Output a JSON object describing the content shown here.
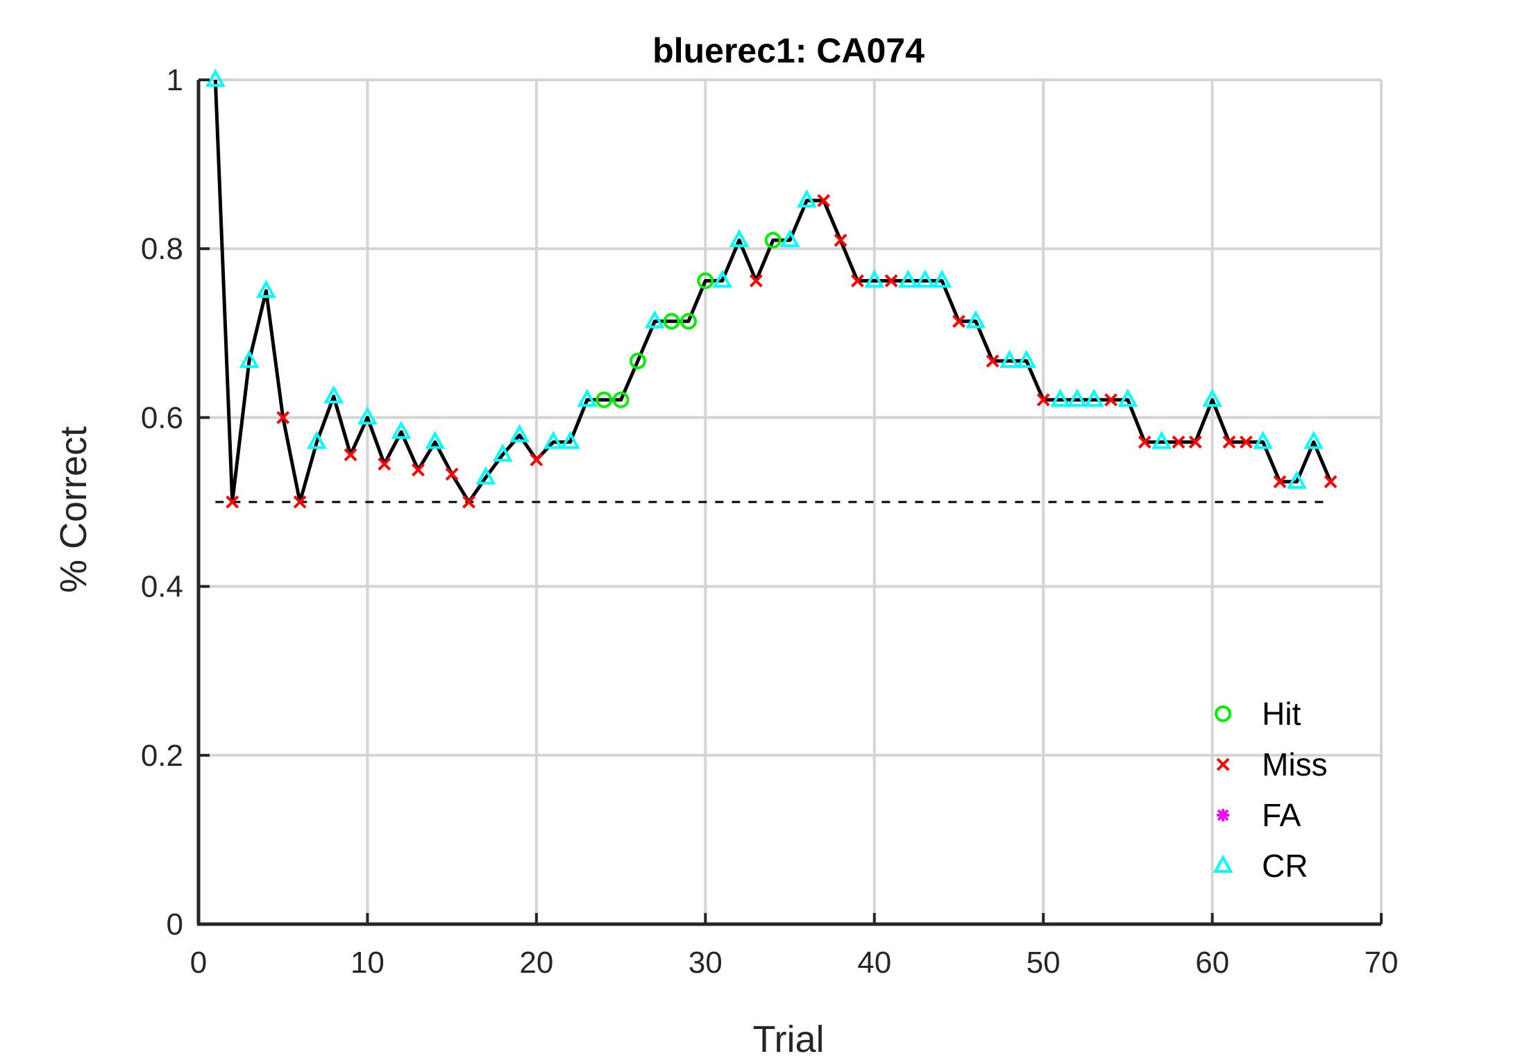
{
  "chart_data": {
    "type": "line",
    "title": "bluerec1: CA074",
    "xlabel": "Trial",
    "ylabel": "% Correct",
    "xlim": [
      0,
      70
    ],
    "ylim": [
      0,
      1
    ],
    "xticks": [
      0,
      10,
      20,
      30,
      40,
      50,
      60,
      70
    ],
    "yticks": [
      0,
      0.2,
      0.4,
      0.6,
      0.8,
      1
    ],
    "ytick_labels": [
      "0",
      "0.2",
      "0.4",
      "0.6",
      "0.8",
      "1"
    ],
    "grid": true,
    "chance_line": {
      "y": 0.5,
      "x_range": [
        1,
        67
      ],
      "style": "dashed"
    },
    "legend_position": "bottom-right",
    "series": [
      {
        "name": "% Correct",
        "line_color": "#000000",
        "x": [
          1,
          2,
          3,
          4,
          5,
          6,
          7,
          8,
          9,
          10,
          11,
          12,
          13,
          14,
          15,
          16,
          17,
          18,
          19,
          20,
          21,
          22,
          23,
          24,
          25,
          26,
          27,
          28,
          29,
          30,
          31,
          32,
          33,
          34,
          35,
          36,
          37,
          38,
          39,
          40,
          41,
          42,
          43,
          44,
          45,
          46,
          47,
          48,
          49,
          50,
          51,
          52,
          53,
          54,
          55,
          56,
          57,
          58,
          59,
          60,
          61,
          62,
          63,
          64,
          65,
          66,
          67
        ],
        "y": [
          1.0,
          0.5,
          0.667,
          0.75,
          0.6,
          0.5,
          0.571,
          0.625,
          0.556,
          0.6,
          0.545,
          0.583,
          0.538,
          0.571,
          0.533,
          0.5,
          0.529,
          0.556,
          0.579,
          0.55,
          0.571,
          0.571,
          0.621,
          0.621,
          0.621,
          0.667,
          0.714,
          0.714,
          0.714,
          0.762,
          0.762,
          0.81,
          0.762,
          0.81,
          0.81,
          0.857,
          0.857,
          0.81,
          0.762,
          0.762,
          0.762,
          0.762,
          0.762,
          0.762,
          0.714,
          0.714,
          0.667,
          0.667,
          0.667,
          0.621,
          0.621,
          0.621,
          0.621,
          0.621,
          0.621,
          0.571,
          0.571,
          0.571,
          0.571,
          0.621,
          0.571,
          0.571,
          0.571,
          0.524,
          0.524,
          0.571,
          0.524
        ],
        "outcome": [
          "CR",
          "Miss",
          "CR",
          "CR",
          "Miss",
          "Miss",
          "CR",
          "CR",
          "Miss",
          "CR",
          "Miss",
          "CR",
          "Miss",
          "CR",
          "Miss",
          "Miss",
          "CR",
          "CR",
          "CR",
          "Miss",
          "CR",
          "CR",
          "CR",
          "Hit",
          "Hit",
          "Hit",
          "CR",
          "Hit",
          "Hit",
          "Hit",
          "CR",
          "CR",
          "Miss",
          "Hit",
          "CR",
          "CR",
          "Miss",
          "Miss",
          "Miss",
          "CR",
          "Miss",
          "CR",
          "CR",
          "CR",
          "Miss",
          "CR",
          "Miss",
          "CR",
          "CR",
          "Miss",
          "CR",
          "CR",
          "CR",
          "Miss",
          "CR",
          "Miss",
          "CR",
          "Miss",
          "Miss",
          "CR",
          "Miss",
          "Miss",
          "CR",
          "Miss",
          "CR",
          "CR",
          "Miss"
        ]
      }
    ],
    "legend": [
      {
        "key": "Hit",
        "label": "Hit",
        "marker": "circle",
        "color": "#00ee00"
      },
      {
        "key": "Miss",
        "label": "Miss",
        "marker": "x",
        "color": "#ff0000"
      },
      {
        "key": "FA",
        "label": "FA",
        "marker": "asterisk",
        "color": "#ff00ff"
      },
      {
        "key": "CR",
        "label": "CR",
        "marker": "triangle",
        "color": "#00ffff"
      }
    ]
  }
}
